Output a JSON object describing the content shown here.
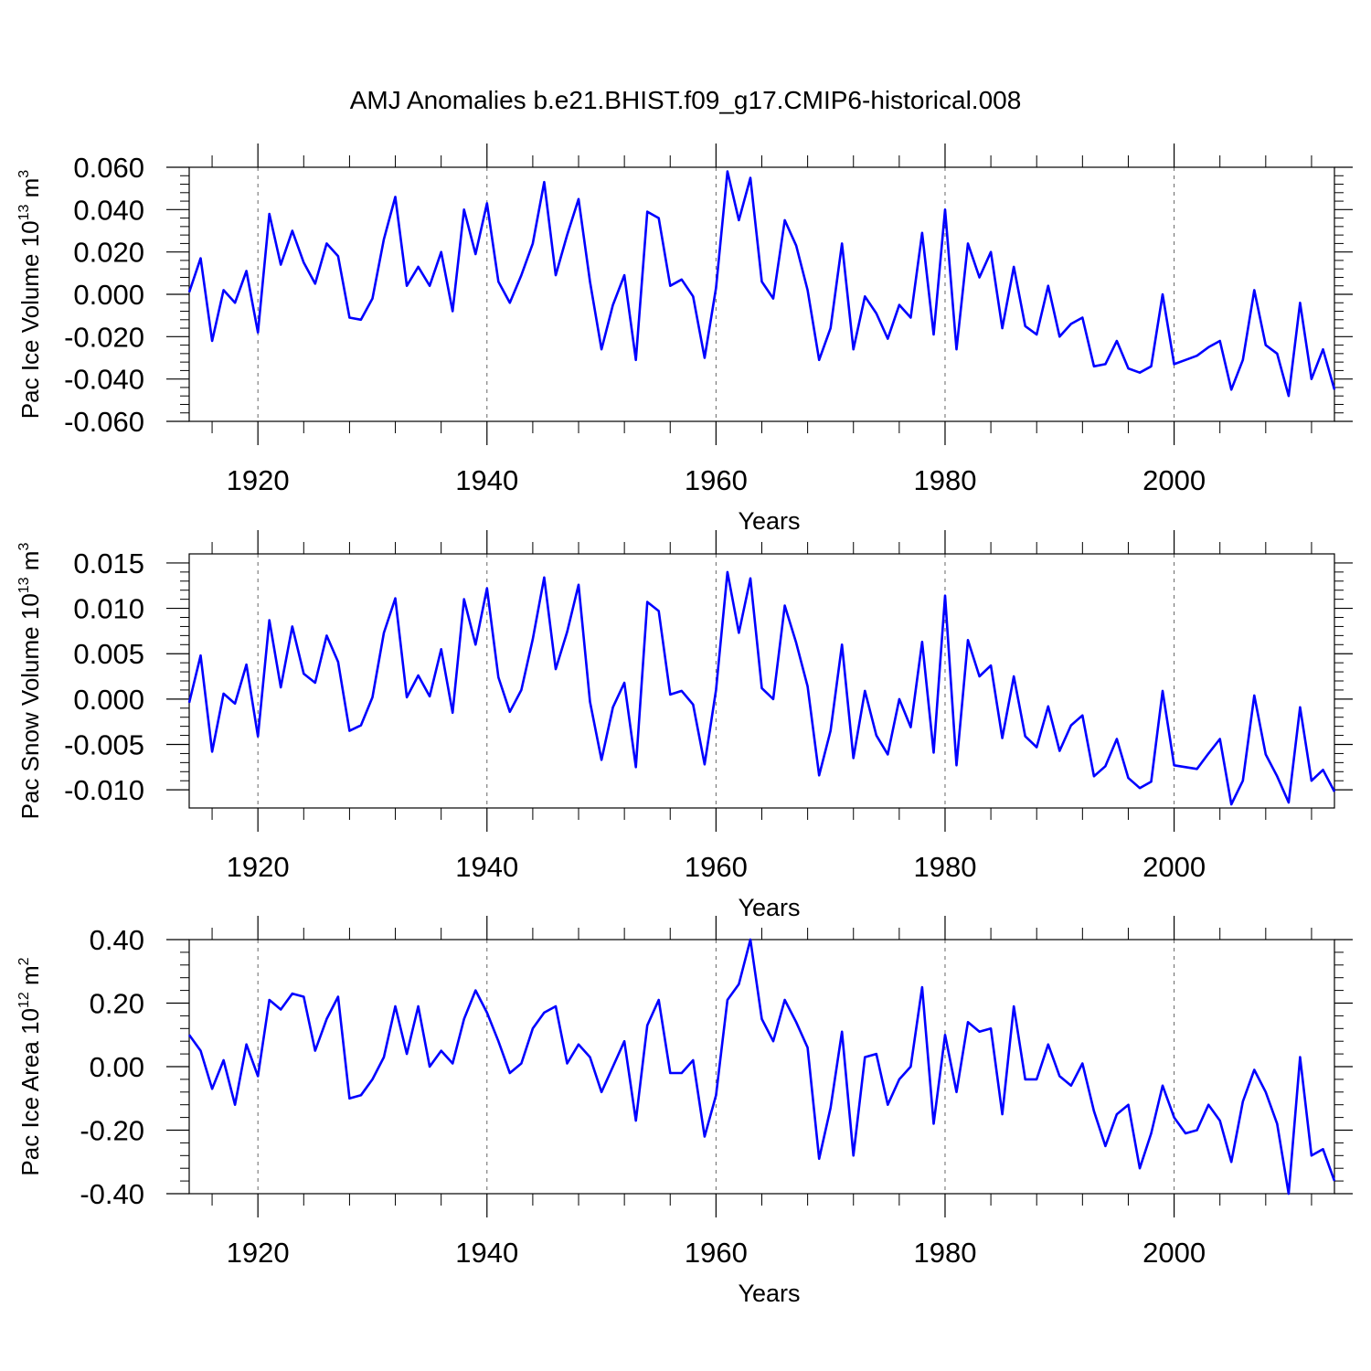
{
  "chart_data": {
    "title": "AMJ Anomalies b.e21.BHIST.f09_g17.CMIP6-historical.008",
    "panels": [
      {
        "type": "line",
        "xlabel": "Years",
        "ylabel_text": "Pac Ice Volume 10",
        "ylabel_exp": "13",
        "ylabel_unit": " m",
        "ylabel_unit_exp": "3",
        "ylim": [
          -0.06,
          0.06
        ],
        "yticks": [
          -0.06,
          -0.04,
          -0.02,
          0.0,
          0.02,
          0.04,
          0.06
        ],
        "ytick_labels": [
          "-0.060",
          "-0.040",
          "-0.020",
          "0.000",
          "0.020",
          "0.040",
          "0.060"
        ],
        "line_color": "#0000ff",
        "values": [
          0.001,
          0.017,
          -0.022,
          0.002,
          -0.004,
          0.011,
          -0.018,
          0.038,
          0.014,
          0.03,
          0.015,
          0.005,
          0.024,
          0.018,
          -0.011,
          -0.012,
          -0.002,
          0.026,
          0.046,
          0.004,
          0.013,
          0.004,
          0.02,
          -0.008,
          0.04,
          0.019,
          0.043,
          0.006,
          -0.004,
          0.009,
          0.024,
          0.053,
          0.009,
          0.028,
          0.045,
          0.006,
          -0.026,
          -0.005,
          0.009,
          -0.031,
          0.039,
          0.036,
          0.004,
          0.007,
          -0.001,
          -0.03,
          0.003,
          0.058,
          0.035,
          0.055,
          0.006,
          -0.002,
          0.035,
          0.023,
          0.002,
          -0.031,
          -0.016,
          0.024,
          -0.026,
          -0.001,
          -0.009,
          -0.021,
          -0.005,
          -0.011,
          0.029,
          -0.019,
          0.04,
          -0.026,
          0.024,
          0.008,
          0.02,
          -0.016,
          0.013,
          -0.015,
          -0.019,
          0.004,
          -0.02,
          -0.014,
          -0.011,
          -0.034,
          -0.033,
          -0.022,
          -0.035,
          -0.037,
          -0.034,
          0.0,
          -0.033,
          -0.031,
          -0.029,
          -0.025,
          -0.022,
          -0.045,
          -0.031,
          0.002,
          -0.024,
          -0.028,
          -0.048,
          -0.004,
          -0.04,
          -0.026,
          -0.045
        ]
      },
      {
        "type": "line",
        "xlabel": "Years",
        "ylabel_text": "Pac Snow Volume 10",
        "ylabel_exp": "13",
        "ylabel_unit": " m",
        "ylabel_unit_exp": "3",
        "ylim": [
          -0.012,
          0.016
        ],
        "yticks": [
          -0.01,
          -0.005,
          0.0,
          0.005,
          0.01,
          0.015
        ],
        "ytick_labels": [
          "-0.010",
          "-0.005",
          "0.000",
          "0.005",
          "0.010",
          "0.015"
        ],
        "line_color": "#0000ff",
        "values": [
          -0.0004,
          0.0048,
          -0.0058,
          0.0006,
          -0.0005,
          0.0038,
          -0.0041,
          0.0087,
          0.0013,
          0.008,
          0.0028,
          0.0018,
          0.007,
          0.0041,
          -0.0035,
          -0.0029,
          0.0002,
          0.0073,
          0.0111,
          0.0002,
          0.0026,
          0.0003,
          0.0055,
          -0.0015,
          0.011,
          0.006,
          0.0122,
          0.0024,
          -0.0014,
          0.001,
          0.0066,
          0.0134,
          0.0033,
          0.0074,
          0.0126,
          -0.0003,
          -0.0067,
          -0.0009,
          0.0018,
          -0.0075,
          0.0107,
          0.0097,
          0.0005,
          0.0009,
          -0.0006,
          -0.0072,
          0.001,
          0.014,
          0.0073,
          0.0133,
          0.0012,
          0.0,
          0.0103,
          0.0062,
          0.0014,
          -0.0084,
          -0.0035,
          0.006,
          -0.0065,
          0.0009,
          -0.004,
          -0.0061,
          0.0,
          -0.0031,
          0.0063,
          -0.0059,
          0.0114,
          -0.0073,
          0.0065,
          0.0025,
          0.0037,
          -0.0043,
          0.0025,
          -0.0041,
          -0.0053,
          -0.0008,
          -0.0057,
          -0.0029,
          -0.0018,
          -0.0085,
          -0.0074,
          -0.0044,
          -0.0087,
          -0.0098,
          -0.0091,
          0.0009,
          -0.0073,
          -0.0075,
          -0.0077,
          -0.006,
          -0.0044,
          -0.0116,
          -0.009,
          0.0004,
          -0.0061,
          -0.0085,
          -0.0114,
          -0.0009,
          -0.009,
          -0.0078,
          -0.0102
        ]
      },
      {
        "type": "line",
        "xlabel": "Years",
        "ylabel_text": "Pac Ice Area 10",
        "ylabel_exp": "12",
        "ylabel_unit": " m",
        "ylabel_unit_exp": "2",
        "ylim": [
          -0.4,
          0.4
        ],
        "yticks": [
          -0.4,
          -0.2,
          0.0,
          0.2,
          0.4
        ],
        "ytick_labels": [
          "-0.40",
          "-0.20",
          "0.00",
          "0.20",
          "0.40"
        ],
        "line_color": "#0000ff",
        "values": [
          0.1,
          0.05,
          -0.07,
          0.02,
          -0.12,
          0.07,
          -0.03,
          0.21,
          0.18,
          0.23,
          0.22,
          0.05,
          0.15,
          0.22,
          -0.1,
          -0.09,
          -0.04,
          0.03,
          0.19,
          0.04,
          0.19,
          0.0,
          0.05,
          0.01,
          0.15,
          0.24,
          0.17,
          0.08,
          -0.02,
          0.01,
          0.12,
          0.17,
          0.19,
          0.01,
          0.07,
          0.03,
          -0.08,
          0.0,
          0.08,
          -0.17,
          0.13,
          0.21,
          -0.02,
          -0.02,
          0.02,
          -0.22,
          -0.09,
          0.21,
          0.26,
          0.4,
          0.15,
          0.08,
          0.21,
          0.14,
          0.06,
          -0.29,
          -0.13,
          0.11,
          -0.28,
          0.03,
          0.04,
          -0.12,
          -0.04,
          0.0,
          0.25,
          -0.18,
          0.1,
          -0.08,
          0.14,
          0.11,
          0.12,
          -0.15,
          0.19,
          -0.04,
          -0.04,
          0.07,
          -0.03,
          -0.06,
          0.01,
          -0.14,
          -0.25,
          -0.15,
          -0.12,
          -0.32,
          -0.21,
          -0.06,
          -0.16,
          -0.21,
          -0.2,
          -0.12,
          -0.17,
          -0.3,
          -0.11,
          -0.01,
          -0.08,
          -0.18,
          -0.4,
          0.03,
          -0.28,
          -0.26,
          -0.36
        ]
      }
    ],
    "x_start": 1914,
    "x_end": 2014,
    "xlim": [
      1914,
      2014
    ],
    "xticks": [
      1920,
      1940,
      1960,
      1980,
      2000
    ],
    "xtick_labels": [
      "1920",
      "1940",
      "1960",
      "1980",
      "2000"
    ],
    "grid_x": true,
    "grid_style": "dashed vertical lines at major x ticks"
  }
}
